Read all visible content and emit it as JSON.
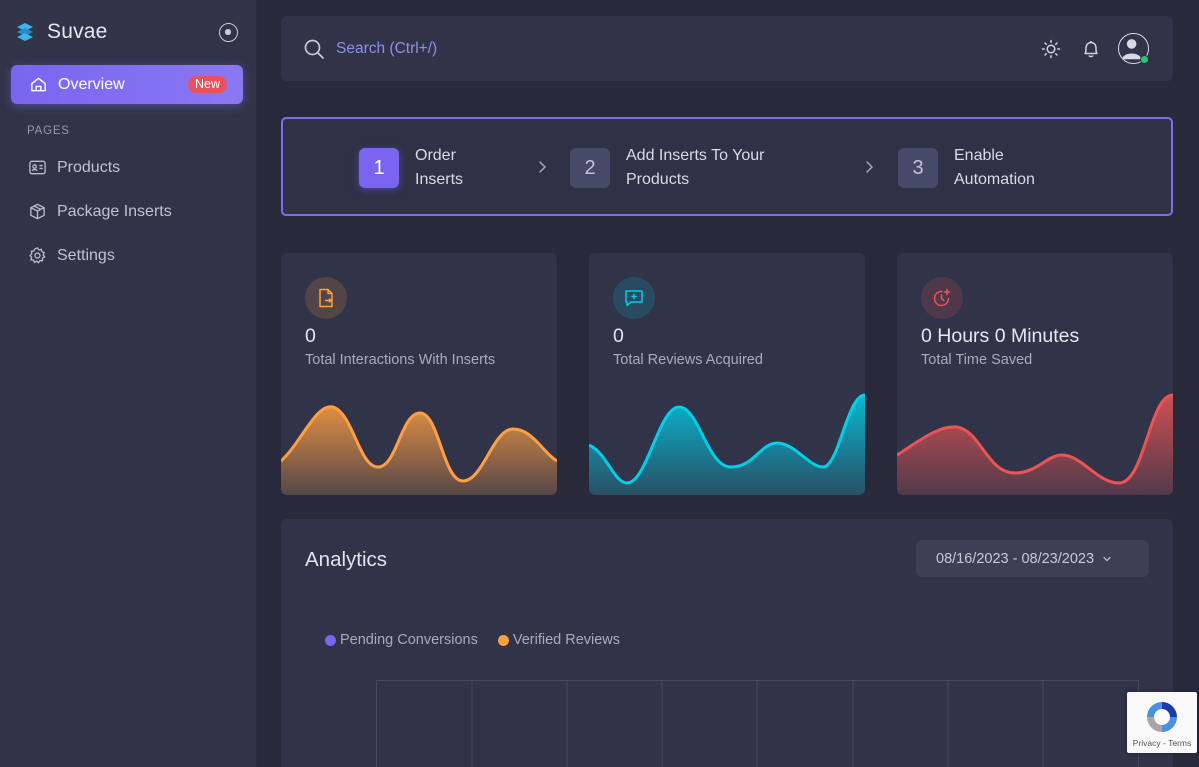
{
  "app": {
    "name": "Suvae"
  },
  "sidebar": {
    "active_item": {
      "label": "Overview",
      "badge": "New"
    },
    "section_title": "PAGES",
    "items": [
      {
        "label": "Products",
        "icon": "id-card-icon"
      },
      {
        "label": "Package Inserts",
        "icon": "box-icon"
      },
      {
        "label": "Settings",
        "icon": "gear-icon"
      }
    ]
  },
  "header": {
    "search_placeholder": "Search (Ctrl+/)",
    "icons": [
      "sun-icon",
      "bell-icon",
      "user-avatar"
    ],
    "online_status_color": "#28c76f"
  },
  "stepper": {
    "steps": [
      {
        "number": "1",
        "label": "Order Inserts",
        "active": true
      },
      {
        "number": "2",
        "label": "Add Inserts To Your Products",
        "active": false
      },
      {
        "number": "3",
        "label": "Enable Automation",
        "active": false
      }
    ]
  },
  "stats": [
    {
      "value": "0",
      "label": "Total Interactions With Inserts",
      "icon": "document-export-icon",
      "color": "#ff9f43"
    },
    {
      "value": "0",
      "label": "Total Reviews Acquired",
      "icon": "message-plus-icon",
      "color": "#00cfe8"
    },
    {
      "value": "0 Hours 0 Minutes",
      "label": "Total Time Saved",
      "icon": "clock-plus-icon",
      "color": "#ea5455"
    }
  ],
  "analytics": {
    "title": "Analytics",
    "date_range": "08/16/2023 - 08/23/2023",
    "legend": [
      {
        "label": "Pending Conversions",
        "color": "#7367f0"
      },
      {
        "label": "Verified Reviews",
        "color": "#ff9f43"
      }
    ]
  },
  "recaptcha": {
    "text": "Privacy - Terms"
  },
  "colors": {
    "accent": "#7367f0",
    "background": "#282a3b",
    "surface": "#313348"
  }
}
